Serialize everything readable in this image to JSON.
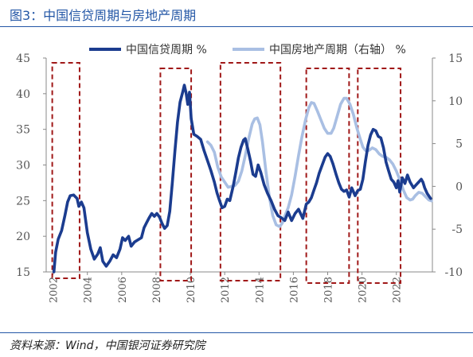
{
  "figure": {
    "title": "图3：中国信贷周期与房地产周期",
    "source": "资料来源：Wind，中国银河证券研究院"
  },
  "colors": {
    "credit": "#1b3c8f",
    "housing": "#a9bfe3",
    "box": "#a01818",
    "title": "#2457a6",
    "axis": "#888888",
    "text": "#555555"
  },
  "chart_data": {
    "type": "line",
    "title": "",
    "grid": false,
    "legend": "top-right",
    "x_ticks": [
      2002,
      2004,
      2006,
      2008,
      2010,
      2012,
      2014,
      2016,
      2018,
      2020,
      2022
    ],
    "xlim": [
      2001.6,
      2024.1
    ],
    "y_left": {
      "ticks": [
        15,
        20,
        25,
        30,
        35,
        40,
        45
      ],
      "ylim": [
        15,
        45
      ]
    },
    "y_right": {
      "ticks": [
        -10,
        -5,
        0,
        5,
        10,
        15
      ],
      "ylim": [
        -10,
        15
      ]
    },
    "highlight_periods": [
      {
        "start": "2002",
        "end": "2003.5"
      },
      {
        "start": "2008.3",
        "end": "2010"
      },
      {
        "start": "2011.8",
        "end": "2015.2"
      },
      {
        "start": "2016.8",
        "end": "2019.2"
      },
      {
        "start": "2019.8",
        "end": "2022.2"
      }
    ],
    "series": [
      {
        "name": "中国信贷周期 %",
        "axis": "left",
        "points": [
          [
            2002.05,
            15.0
          ],
          [
            2002.15,
            17.8
          ],
          [
            2002.3,
            19.6
          ],
          [
            2002.5,
            20.8
          ],
          [
            2002.7,
            23.0
          ],
          [
            2002.85,
            24.8
          ],
          [
            2003.0,
            25.7
          ],
          [
            2003.2,
            25.8
          ],
          [
            2003.4,
            25.3
          ],
          [
            2003.5,
            24.2
          ],
          [
            2003.65,
            24.8
          ],
          [
            2003.8,
            24.0
          ],
          [
            2004.0,
            20.5
          ],
          [
            2004.2,
            18.2
          ],
          [
            2004.4,
            16.8
          ],
          [
            2004.6,
            17.5
          ],
          [
            2004.75,
            18.4
          ],
          [
            2004.9,
            16.5
          ],
          [
            2005.1,
            15.8
          ],
          [
            2005.3,
            16.5
          ],
          [
            2005.5,
            17.4
          ],
          [
            2005.7,
            17.0
          ],
          [
            2005.9,
            18.2
          ],
          [
            2006.05,
            19.8
          ],
          [
            2006.2,
            19.4
          ],
          [
            2006.4,
            20.0
          ],
          [
            2006.55,
            18.6
          ],
          [
            2006.75,
            19.2
          ],
          [
            2006.95,
            19.5
          ],
          [
            2007.15,
            19.8
          ],
          [
            2007.3,
            21.2
          ],
          [
            2007.45,
            21.9
          ],
          [
            2007.6,
            22.6
          ],
          [
            2007.75,
            23.2
          ],
          [
            2007.9,
            22.8
          ],
          [
            2008.05,
            23.2
          ],
          [
            2008.2,
            22.7
          ],
          [
            2008.35,
            21.8
          ],
          [
            2008.5,
            21.1
          ],
          [
            2008.65,
            21.5
          ],
          [
            2008.8,
            23.5
          ],
          [
            2008.95,
            27.5
          ],
          [
            2009.1,
            32.0
          ],
          [
            2009.25,
            36.0
          ],
          [
            2009.4,
            38.8
          ],
          [
            2009.55,
            40.2
          ],
          [
            2009.65,
            41.2
          ],
          [
            2009.75,
            40.1
          ],
          [
            2009.85,
            38.5
          ],
          [
            2009.95,
            40.2
          ],
          [
            2010.05,
            36.5
          ],
          [
            2010.2,
            34.3
          ],
          [
            2010.4,
            34.0
          ],
          [
            2010.6,
            33.6
          ],
          [
            2010.8,
            32.0
          ],
          [
            2011.0,
            30.6
          ],
          [
            2011.2,
            29.2
          ],
          [
            2011.4,
            27.6
          ],
          [
            2011.55,
            26.1
          ],
          [
            2011.7,
            25.0
          ],
          [
            2011.85,
            24.0
          ],
          [
            2012.0,
            24.2
          ],
          [
            2012.15,
            25.2
          ],
          [
            2012.3,
            25.0
          ],
          [
            2012.5,
            27.1
          ],
          [
            2012.65,
            29.0
          ],
          [
            2012.8,
            31.0
          ],
          [
            2012.95,
            32.5
          ],
          [
            2013.1,
            33.5
          ],
          [
            2013.2,
            33.7
          ],
          [
            2013.35,
            32.2
          ],
          [
            2013.5,
            30.6
          ],
          [
            2013.65,
            28.7
          ],
          [
            2013.8,
            28.4
          ],
          [
            2013.95,
            30.0
          ],
          [
            2014.1,
            29.0
          ],
          [
            2014.3,
            27.2
          ],
          [
            2014.5,
            26.0
          ],
          [
            2014.7,
            25.0
          ],
          [
            2014.9,
            23.8
          ],
          [
            2015.1,
            22.9
          ],
          [
            2015.3,
            22.6
          ],
          [
            2015.5,
            22.2
          ],
          [
            2015.7,
            23.4
          ],
          [
            2015.9,
            22.2
          ],
          [
            2016.1,
            23.2
          ],
          [
            2016.3,
            23.8
          ],
          [
            2016.55,
            22.5
          ],
          [
            2016.75,
            24.5
          ],
          [
            2016.9,
            24.8
          ],
          [
            2017.05,
            25.4
          ],
          [
            2017.2,
            26.5
          ],
          [
            2017.35,
            27.5
          ],
          [
            2017.5,
            28.8
          ],
          [
            2017.65,
            29.8
          ],
          [
            2017.85,
            31.1
          ],
          [
            2018.0,
            31.6
          ],
          [
            2018.15,
            31.2
          ],
          [
            2018.3,
            30.2
          ],
          [
            2018.5,
            28.6
          ],
          [
            2018.65,
            27.5
          ],
          [
            2018.8,
            26.6
          ],
          [
            2018.95,
            26.3
          ],
          [
            2019.1,
            26.5
          ],
          [
            2019.25,
            25.5
          ],
          [
            2019.4,
            26.8
          ],
          [
            2019.6,
            25.7
          ],
          [
            2019.75,
            26.4
          ],
          [
            2019.9,
            26.6
          ],
          [
            2020.05,
            28.0
          ],
          [
            2020.2,
            30.5
          ],
          [
            2020.35,
            32.8
          ],
          [
            2020.5,
            34.2
          ],
          [
            2020.65,
            35.0
          ],
          [
            2020.8,
            34.8
          ],
          [
            2020.95,
            34.0
          ],
          [
            2021.1,
            33.8
          ],
          [
            2021.25,
            32.4
          ],
          [
            2021.4,
            30.4
          ],
          [
            2021.55,
            29.2
          ],
          [
            2021.7,
            28.0
          ],
          [
            2021.85,
            27.6
          ],
          [
            2022.0,
            26.8
          ],
          [
            2022.1,
            27.8
          ],
          [
            2022.2,
            26.2
          ],
          [
            2022.35,
            28.2
          ],
          [
            2022.5,
            27.4
          ],
          [
            2022.65,
            28.6
          ],
          [
            2022.8,
            27.6
          ],
          [
            2023.0,
            26.8
          ],
          [
            2023.15,
            27.2
          ],
          [
            2023.3,
            27.6
          ],
          [
            2023.45,
            28.0
          ],
          [
            2023.55,
            27.6
          ],
          [
            2023.65,
            26.8
          ],
          [
            2023.8,
            26.0
          ],
          [
            2024.0,
            25.3
          ]
        ]
      },
      {
        "name": "中国房地产周期（右轴） %",
        "axis": "right",
        "points": [
          [
            2011.0,
            5.2
          ],
          [
            2011.2,
            4.8
          ],
          [
            2011.4,
            4.0
          ],
          [
            2011.6,
            2.2
          ],
          [
            2011.8,
            1.1
          ],
          [
            2012.0,
            0.5
          ],
          [
            2012.2,
            -0.1
          ],
          [
            2012.4,
            0.0
          ],
          [
            2012.6,
            0.1
          ],
          [
            2012.8,
            0.6
          ],
          [
            2013.0,
            1.8
          ],
          [
            2013.2,
            3.6
          ],
          [
            2013.4,
            5.6
          ],
          [
            2013.6,
            7.3
          ],
          [
            2013.75,
            7.9
          ],
          [
            2013.9,
            8.0
          ],
          [
            2014.05,
            7.2
          ],
          [
            2014.2,
            5.2
          ],
          [
            2014.4,
            1.8
          ],
          [
            2014.6,
            -1.2
          ],
          [
            2014.8,
            -3.4
          ],
          [
            2015.0,
            -4.5
          ],
          [
            2015.2,
            -4.7
          ],
          [
            2015.35,
            -4.3
          ],
          [
            2015.5,
            -3.5
          ],
          [
            2015.7,
            -2.5
          ],
          [
            2015.9,
            -1.0
          ],
          [
            2016.1,
            1.2
          ],
          [
            2016.3,
            3.6
          ],
          [
            2016.5,
            5.8
          ],
          [
            2016.7,
            7.7
          ],
          [
            2016.9,
            9.2
          ],
          [
            2017.05,
            9.8
          ],
          [
            2017.2,
            9.7
          ],
          [
            2017.4,
            8.8
          ],
          [
            2017.6,
            7.8
          ],
          [
            2017.8,
            6.8
          ],
          [
            2018.0,
            6.2
          ],
          [
            2018.2,
            6.2
          ],
          [
            2018.35,
            6.8
          ],
          [
            2018.55,
            8.2
          ],
          [
            2018.75,
            9.6
          ],
          [
            2018.95,
            10.3
          ],
          [
            2019.1,
            10.3
          ],
          [
            2019.3,
            9.6
          ],
          [
            2019.5,
            8.4
          ],
          [
            2019.7,
            6.8
          ],
          [
            2019.9,
            5.5
          ],
          [
            2020.05,
            4.6
          ],
          [
            2020.2,
            4.2
          ],
          [
            2020.4,
            4.2
          ],
          [
            2020.6,
            4.5
          ],
          [
            2020.8,
            4.3
          ],
          [
            2021.0,
            3.8
          ],
          [
            2021.2,
            3.5
          ],
          [
            2021.4,
            3.4
          ],
          [
            2021.6,
            3.1
          ],
          [
            2021.8,
            2.6
          ],
          [
            2022.0,
            1.8
          ],
          [
            2022.2,
            0.8
          ],
          [
            2022.4,
            -0.4
          ],
          [
            2022.6,
            -1.3
          ],
          [
            2022.8,
            -1.6
          ],
          [
            2022.95,
            -1.5
          ],
          [
            2023.1,
            -1.1
          ],
          [
            2023.3,
            -0.7
          ],
          [
            2023.5,
            -0.8
          ],
          [
            2023.7,
            -1.2
          ],
          [
            2023.9,
            -1.6
          ],
          [
            2024.05,
            -1.7
          ]
        ]
      }
    ]
  }
}
